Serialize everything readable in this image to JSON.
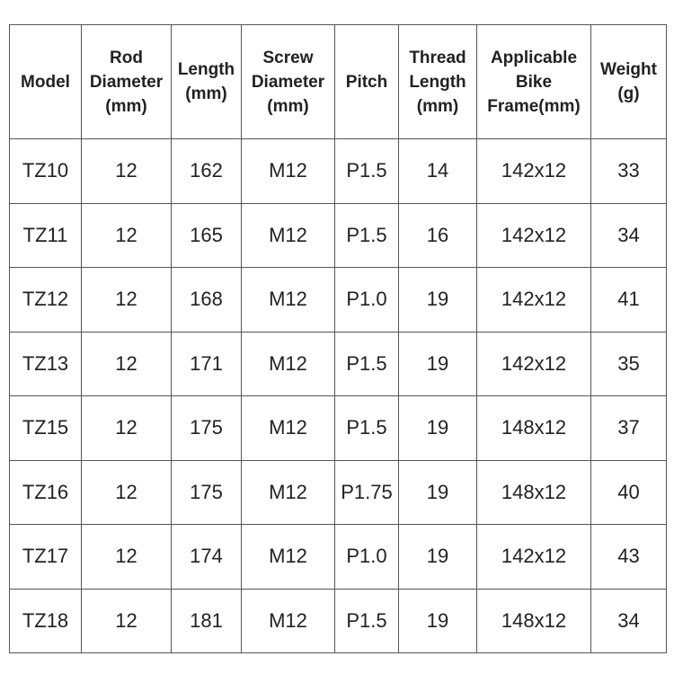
{
  "table": {
    "headers": [
      [
        "Model"
      ],
      [
        "Rod",
        "Diameter",
        "(mm)"
      ],
      [
        "Length",
        "(mm)"
      ],
      [
        "Screw",
        "Diameter",
        "(mm)"
      ],
      [
        "Pitch"
      ],
      [
        "Thread",
        "Length",
        "(mm)"
      ],
      [
        "Applicable",
        "Bike",
        "Frame(mm)"
      ],
      [
        "Weight",
        "(g)"
      ]
    ],
    "rows": [
      [
        "TZ10",
        "12",
        "162",
        "M12",
        "P1.5",
        "14",
        "142x12",
        "33"
      ],
      [
        "TZ11",
        "12",
        "165",
        "M12",
        "P1.5",
        "16",
        "142x12",
        "34"
      ],
      [
        "TZ12",
        "12",
        "168",
        "M12",
        "P1.0",
        "19",
        "142x12",
        "41"
      ],
      [
        "TZ13",
        "12",
        "171",
        "M12",
        "P1.5",
        "19",
        "142x12",
        "35"
      ],
      [
        "TZ15",
        "12",
        "175",
        "M12",
        "P1.5",
        "19",
        "148x12",
        "37"
      ],
      [
        "TZ16",
        "12",
        "175",
        "M12",
        "P1.75",
        "19",
        "148x12",
        "40"
      ],
      [
        "TZ17",
        "12",
        "174",
        "M12",
        "P1.0",
        "19",
        "142x12",
        "43"
      ],
      [
        "TZ18",
        "12",
        "181",
        "M12",
        "P1.5",
        "19",
        "148x12",
        "34"
      ]
    ]
  }
}
